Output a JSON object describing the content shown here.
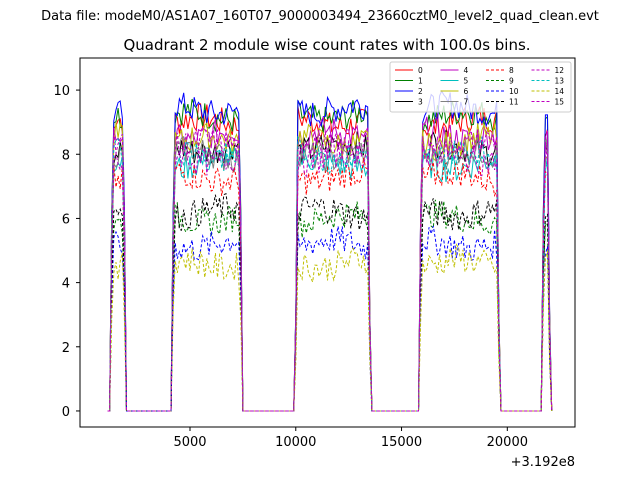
{
  "figure": {
    "suptitle": "Data file: modeM0/AS1A07_160T07_9000003494_23660cztM0_level2_quad_clean.evt",
    "title": "Quadrant 2 module wise count rates with 100.0s bins."
  },
  "chart_data": {
    "type": "line",
    "title": "Quadrant 2 module wise count rates with 100.0s bins.",
    "xlabel": "",
    "ylabel": "",
    "x_offset_label": "+3.192e8",
    "xlim": [
      -200,
      23200
    ],
    "ylim": [
      -0.5,
      11.0
    ],
    "x_ticks": [
      5000,
      10000,
      15000,
      20000
    ],
    "x_tick_labels": [
      "5000",
      "10000",
      "15000",
      "20000"
    ],
    "y_ticks": [
      0,
      2,
      4,
      6,
      8,
      10
    ],
    "y_tick_labels": [
      "0",
      "2",
      "4",
      "6",
      "8",
      "10"
    ],
    "grid": false,
    "legend_position": "top-right",
    "legend_columns": 4,
    "on_segments": [
      [
        1200,
        2000
      ],
      [
        4100,
        7500
      ],
      [
        9950,
        13550
      ],
      [
        15800,
        19650
      ],
      [
        21600,
        22050
      ]
    ],
    "series": [
      {
        "name": "0",
        "color": "#ff0000",
        "style": "solid",
        "level": 9.0
      },
      {
        "name": "1",
        "color": "#008000",
        "style": "solid",
        "level": 9.2
      },
      {
        "name": "2",
        "color": "#0000ff",
        "style": "solid",
        "level": 9.4
      },
      {
        "name": "3",
        "color": "#000000",
        "style": "solid",
        "level": 8.2
      },
      {
        "name": "4",
        "color": "#bf00bf",
        "style": "solid",
        "level": 8.6
      },
      {
        "name": "5",
        "color": "#00bfbf",
        "style": "solid",
        "level": 7.7
      },
      {
        "name": "6",
        "color": "#bfbf00",
        "style": "solid",
        "level": 8.4
      },
      {
        "name": "7",
        "color": "#808080",
        "style": "solid",
        "level": 8.0
      },
      {
        "name": "8",
        "color": "#ff0000",
        "style": "dashed",
        "level": 7.3
      },
      {
        "name": "9",
        "color": "#008000",
        "style": "dashed",
        "level": 6.0
      },
      {
        "name": "10",
        "color": "#0000ff",
        "style": "dashed",
        "level": 5.2
      },
      {
        "name": "11",
        "color": "#000000",
        "style": "dashed",
        "level": 6.2
      },
      {
        "name": "12",
        "color": "#bf00bf",
        "style": "dashed",
        "level": 8.3
      },
      {
        "name": "13",
        "color": "#00bfbf",
        "style": "dashed",
        "level": 8.0
      },
      {
        "name": "14",
        "color": "#bfbf00",
        "style": "dashed",
        "level": 4.6
      },
      {
        "name": "15",
        "color": "#bf00bf",
        "style": "dashed",
        "level": 7.9
      }
    ]
  }
}
